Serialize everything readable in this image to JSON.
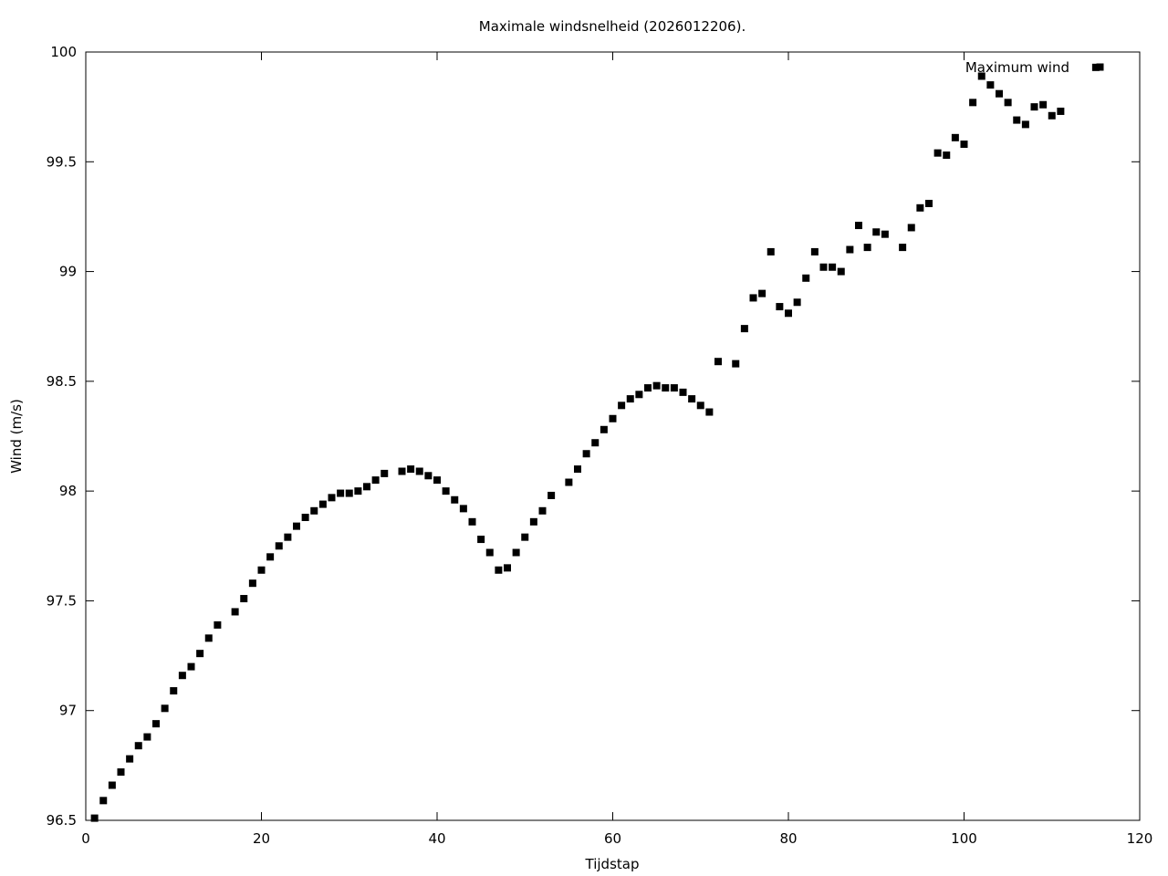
{
  "chart_data": {
    "type": "scatter",
    "title": "Maximale windsnelheid (2026012206).",
    "xlabel": "Tijdstap",
    "ylabel": "Wind (m/s)",
    "xlim": [
      0,
      120
    ],
    "ylim": [
      96.5,
      100
    ],
    "xticks": [
      0,
      20,
      40,
      60,
      80,
      100,
      120
    ],
    "yticks": [
      96.5,
      97,
      97.5,
      98,
      98.5,
      99,
      99.5,
      100
    ],
    "xtick_labels": [
      "0",
      "20",
      "40",
      "60",
      "80",
      "100",
      "120"
    ],
    "ytick_labels": [
      "96.5",
      "97",
      "97.5",
      "98",
      "98.5",
      "99",
      "99.5",
      "100"
    ],
    "grid": false,
    "legend_position": "top-right",
    "series": [
      {
        "name": "Maximum wind",
        "marker": "square",
        "color": "#000000",
        "x": [
          1,
          2,
          3,
          4,
          5,
          6,
          7,
          8,
          9,
          10,
          11,
          12,
          13,
          14,
          15,
          17,
          18,
          19,
          20,
          21,
          22,
          23,
          24,
          25,
          26,
          27,
          28,
          29,
          30,
          31,
          32,
          33,
          34,
          36,
          37,
          38,
          39,
          40,
          41,
          42,
          43,
          44,
          45,
          46,
          47,
          48,
          49,
          50,
          51,
          52,
          53,
          55,
          56,
          57,
          58,
          59,
          60,
          61,
          62,
          63,
          64,
          65,
          66,
          67,
          68,
          69,
          70,
          71,
          72,
          74,
          75,
          76,
          77,
          78,
          79,
          80,
          81,
          82,
          83,
          84,
          85,
          86,
          87,
          88,
          89,
          90,
          91,
          93,
          94,
          95,
          96,
          97,
          98,
          99,
          100,
          101,
          102,
          103,
          104,
          105,
          106,
          107,
          108,
          109,
          110,
          111,
          115
        ],
        "y": [
          96.51,
          96.59,
          96.66,
          96.72,
          96.78,
          96.84,
          96.88,
          96.94,
          97.01,
          97.09,
          97.16,
          97.2,
          97.26,
          97.33,
          97.39,
          97.45,
          97.51,
          97.58,
          97.64,
          97.7,
          97.75,
          97.79,
          97.84,
          97.88,
          97.91,
          97.94,
          97.97,
          97.99,
          97.99,
          98.0,
          98.02,
          98.05,
          98.08,
          98.09,
          98.1,
          98.09,
          98.07,
          98.05,
          98.0,
          97.96,
          97.92,
          97.86,
          97.78,
          97.72,
          97.64,
          97.65,
          97.72,
          97.79,
          97.86,
          97.91,
          97.98,
          98.04,
          98.1,
          98.17,
          98.22,
          98.28,
          98.33,
          98.39,
          98.42,
          98.44,
          98.47,
          98.48,
          98.47,
          98.47,
          98.45,
          98.42,
          98.39,
          98.36,
          98.59,
          98.58,
          98.74,
          98.88,
          98.9,
          99.09,
          98.84,
          98.81,
          98.86,
          98.97,
          99.09,
          99.02,
          99.02,
          99.0,
          99.1,
          99.21,
          99.11,
          99.18,
          99.17,
          99.11,
          99.2,
          99.29,
          99.31,
          99.54,
          99.53,
          99.61,
          99.58,
          99.77,
          99.89,
          99.85,
          99.81,
          99.77,
          99.69,
          99.67,
          99.75,
          99.76,
          99.71,
          99.73,
          99.93
        ]
      }
    ]
  }
}
